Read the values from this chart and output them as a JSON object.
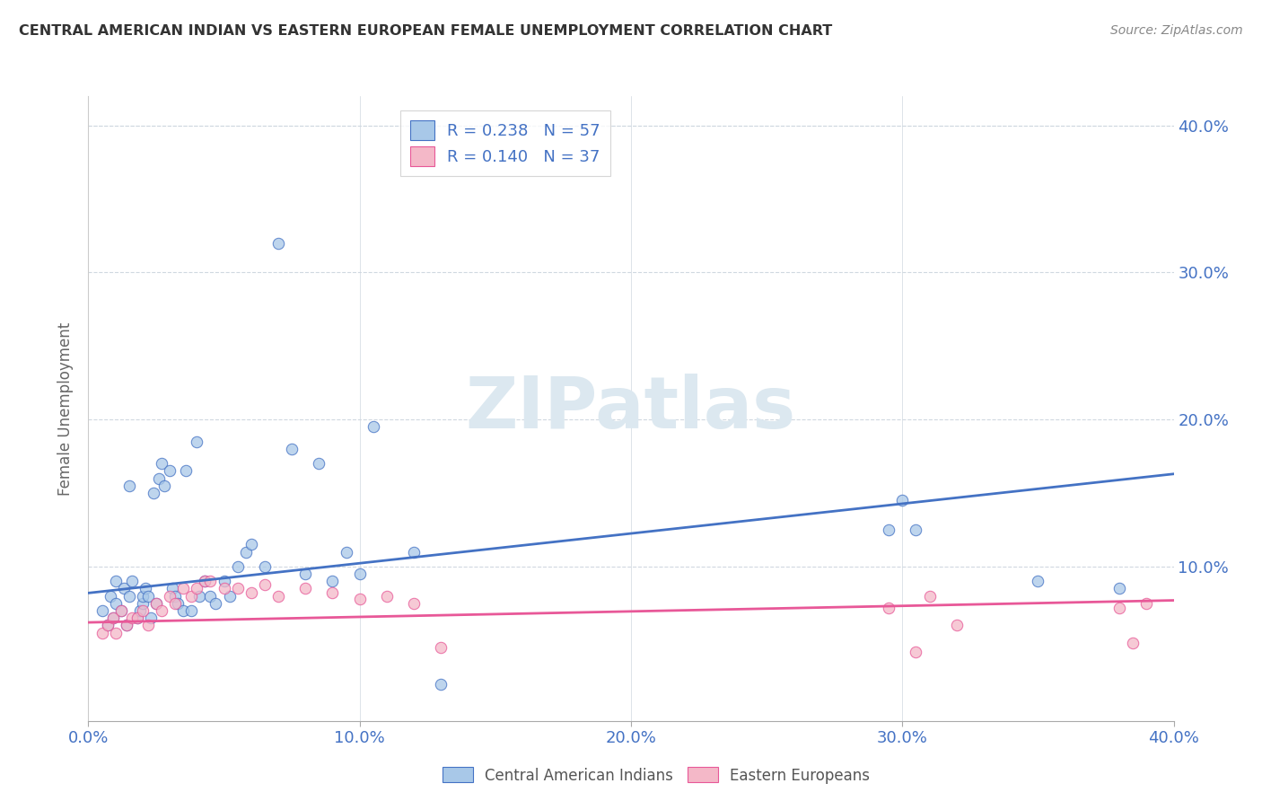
{
  "title": "CENTRAL AMERICAN INDIAN VS EASTERN EUROPEAN FEMALE UNEMPLOYMENT CORRELATION CHART",
  "source": "Source: ZipAtlas.com",
  "ylabel": "Female Unemployment",
  "watermark": "ZIPatlas",
  "xlim": [
    0.0,
    0.4
  ],
  "ylim": [
    -0.005,
    0.42
  ],
  "xticks": [
    0.0,
    0.1,
    0.2,
    0.3,
    0.4
  ],
  "yticks": [
    0.1,
    0.2,
    0.3,
    0.4
  ],
  "ytick_labels": [
    "10.0%",
    "20.0%",
    "30.0%",
    "40.0%"
  ],
  "xtick_labels": [
    "0.0%",
    "10.0%",
    "20.0%",
    "30.0%",
    "40.0%"
  ],
  "blue_R": 0.238,
  "blue_N": 57,
  "pink_R": 0.14,
  "pink_N": 37,
  "blue_color": "#a8c8e8",
  "pink_color": "#f4b8c8",
  "line_blue": "#4472c4",
  "line_pink": "#e85898",
  "legend_label_blue": "Central American Indians",
  "legend_label_pink": "Eastern Europeans",
  "blue_scatter_x": [
    0.005,
    0.007,
    0.008,
    0.009,
    0.01,
    0.01,
    0.012,
    0.013,
    0.014,
    0.015,
    0.015,
    0.016,
    0.018,
    0.019,
    0.02,
    0.02,
    0.021,
    0.022,
    0.023,
    0.024,
    0.025,
    0.026,
    0.027,
    0.028,
    0.03,
    0.031,
    0.032,
    0.033,
    0.035,
    0.036,
    0.038,
    0.04,
    0.041,
    0.043,
    0.045,
    0.047,
    0.05,
    0.052,
    0.055,
    0.058,
    0.06,
    0.065,
    0.07,
    0.075,
    0.08,
    0.085,
    0.09,
    0.095,
    0.1,
    0.105,
    0.12,
    0.13,
    0.295,
    0.3,
    0.305,
    0.35,
    0.38
  ],
  "blue_scatter_y": [
    0.07,
    0.06,
    0.08,
    0.065,
    0.075,
    0.09,
    0.07,
    0.085,
    0.06,
    0.155,
    0.08,
    0.09,
    0.065,
    0.07,
    0.075,
    0.08,
    0.085,
    0.08,
    0.065,
    0.15,
    0.075,
    0.16,
    0.17,
    0.155,
    0.165,
    0.085,
    0.08,
    0.075,
    0.07,
    0.165,
    0.07,
    0.185,
    0.08,
    0.09,
    0.08,
    0.075,
    0.09,
    0.08,
    0.1,
    0.11,
    0.115,
    0.1,
    0.32,
    0.18,
    0.095,
    0.17,
    0.09,
    0.11,
    0.095,
    0.195,
    0.11,
    0.02,
    0.125,
    0.145,
    0.125,
    0.09,
    0.085
  ],
  "pink_scatter_x": [
    0.005,
    0.007,
    0.009,
    0.01,
    0.012,
    0.014,
    0.016,
    0.018,
    0.02,
    0.022,
    0.025,
    0.027,
    0.03,
    0.032,
    0.035,
    0.038,
    0.04,
    0.043,
    0.045,
    0.05,
    0.055,
    0.06,
    0.065,
    0.07,
    0.08,
    0.09,
    0.1,
    0.11,
    0.12,
    0.13,
    0.295,
    0.305,
    0.31,
    0.32,
    0.38,
    0.385,
    0.39
  ],
  "pink_scatter_y": [
    0.055,
    0.06,
    0.065,
    0.055,
    0.07,
    0.06,
    0.065,
    0.065,
    0.07,
    0.06,
    0.075,
    0.07,
    0.08,
    0.075,
    0.085,
    0.08,
    0.085,
    0.09,
    0.09,
    0.085,
    0.085,
    0.082,
    0.088,
    0.08,
    0.085,
    0.082,
    0.078,
    0.08,
    0.075,
    0.045,
    0.072,
    0.042,
    0.08,
    0.06,
    0.072,
    0.048,
    0.075
  ],
  "blue_line_x": [
    0.0,
    0.4
  ],
  "blue_line_y": [
    0.082,
    0.163
  ],
  "pink_line_x": [
    0.0,
    0.4
  ],
  "pink_line_y": [
    0.062,
    0.077
  ],
  "grid_color": "#d0d8e0",
  "bg_color": "#ffffff",
  "marker_size": 80
}
